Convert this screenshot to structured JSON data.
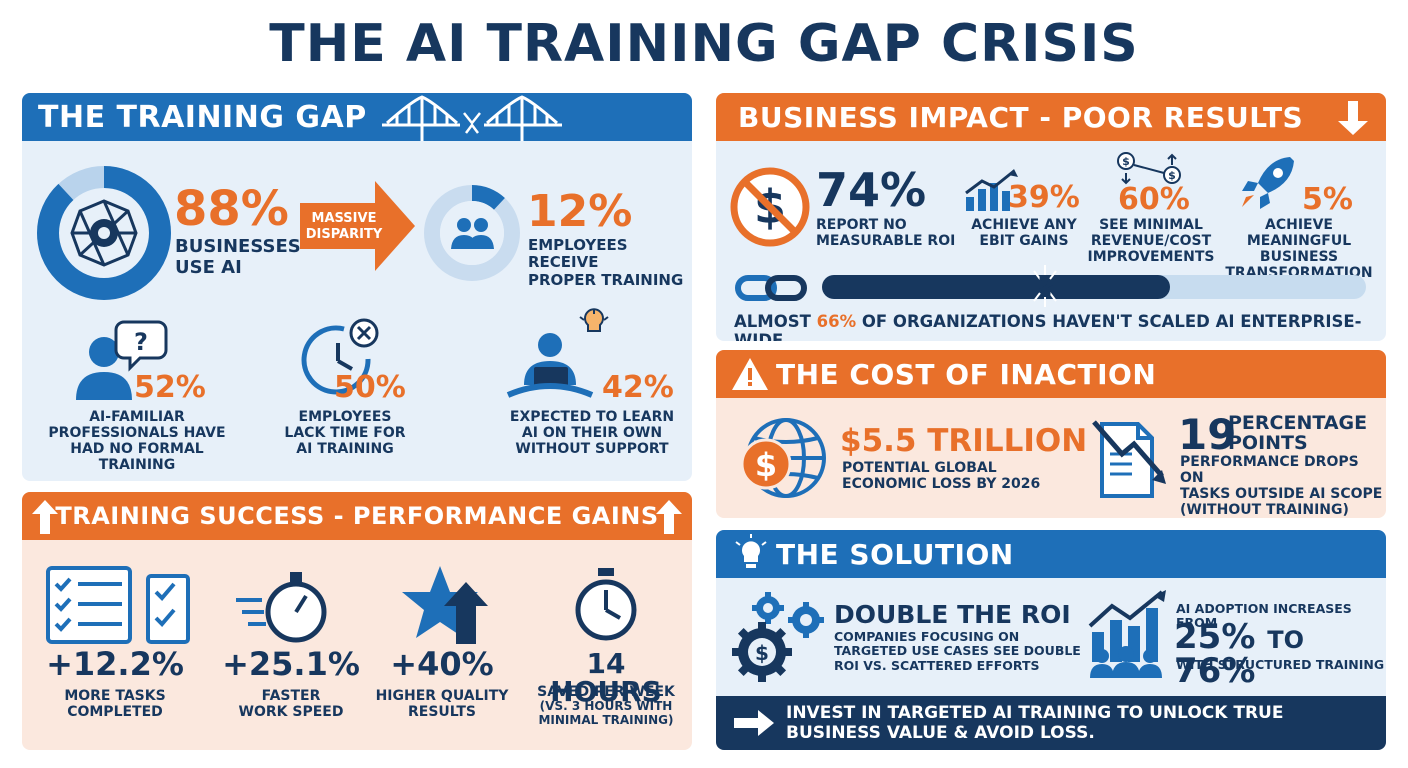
{
  "title": "THE AI TRAINING GAP CRISIS",
  "training_gap": {
    "header": "THE TRAINING GAP",
    "stat1": {
      "value": "88%",
      "label_line1": "BUSINESSES",
      "label_line2": "USE AI",
      "ring_level": 0.88
    },
    "arrow": {
      "line1": "MASSIVE",
      "line2": "DISPARITY"
    },
    "stat2": {
      "value": "12%",
      "label_line1": "EMPLOYEES RECEIVE",
      "label_line2": "PROPER TRAINING",
      "ring_level": 0.12
    },
    "stat3": {
      "value": "52%",
      "label_line1": "AI-FAMILIAR",
      "label_line2": "PROFESSIONALS HAVE",
      "label_line3": "HAD NO FORMAL TRAINING"
    },
    "stat4": {
      "value": "50%",
      "label_line1": "EMPLOYEES",
      "label_line2": "LACK TIME FOR",
      "label_line3": "AI TRAINING"
    },
    "stat5": {
      "value": "42%",
      "label_line1": "EXPECTED TO LEARN",
      "label_line2": "AI ON THEIR OWN",
      "label_line3": "WITHOUT SUPPORT"
    }
  },
  "training_success": {
    "header": "TRAINING SUCCESS - PERFORMANCE GAINS",
    "stat1": {
      "value": "+12.2%",
      "label_line1": "MORE TASKS",
      "label_line2": "COMPLETED"
    },
    "stat2": {
      "value": "+25.1%",
      "label_line1": "FASTER",
      "label_line2": "WORK SPEED"
    },
    "stat3": {
      "value": "+40%",
      "label_line1": "HIGHER QUALITY",
      "label_line2": "RESULTS"
    },
    "stat4": {
      "value": "14 HOURS",
      "label_line1": "SAVED PER WEEK",
      "label_line2": "(VS. 3 HOURS WITH",
      "label_line3": "MINIMAL TRAINING)"
    }
  },
  "business_impact": {
    "header": "BUSINESS IMPACT - POOR RESULTS",
    "stat1": {
      "value": "74%",
      "label_line1": "REPORT NO",
      "label_line2": "MEASURABLE ROI"
    },
    "stat2": {
      "value": "39%",
      "label_line1": "ACHIEVE ANY",
      "label_line2": "EBIT GAINS"
    },
    "stat3": {
      "value": "60%",
      "label_line1": "SEE MINIMAL",
      "label_line2": "REVENUE/COST",
      "label_line3": "IMPROVEMENTS"
    },
    "stat4": {
      "value": "5%",
      "label_line1": "ACHIEVE MEANINGFUL",
      "label_line2": "BUSINESS",
      "label_line3": "TRANSFORMATION"
    },
    "bar": {
      "prefix": "ALMOST ",
      "highlight": "66%",
      "suffix": " OF ORGANIZATIONS HAVEN'T SCALED AI ENTERPRISE-WIDE",
      "level": 0.64
    }
  },
  "cost_of_inaction": {
    "header": "THE COST OF INACTION",
    "stat1": {
      "value": "$5.5 TRILLION",
      "label_line1": "POTENTIAL GLOBAL",
      "label_line2": "ECONOMIC LOSS BY 2026"
    },
    "stat2": {
      "value": "19",
      "unit_line1": "PERCENTAGE",
      "unit_line2": "POINTS",
      "label_line1": "PERFORMANCE DROPS ON",
      "label_line2": "TASKS OUTSIDE AI SCOPE",
      "label_line3": "(WITHOUT TRAINING)"
    }
  },
  "solution": {
    "header": "THE SOLUTION",
    "stat1": {
      "title": "DOUBLE THE ROI",
      "label_line1": "COMPANIES FOCUSING ON",
      "label_line2": "TARGETED USE CASES SEE DOUBLE",
      "label_line3": "ROI VS. SCATTERED EFFORTS"
    },
    "stat2": {
      "label_top": "AI ADOPTION INCREASES FROM",
      "value_from": "25%",
      "value_to_word": "TO",
      "value_to": "76%",
      "label_bottom": "WITH STRUCTURED TRAINING"
    },
    "cta_line1": "INVEST IN TARGETED AI TRAINING TO UNLOCK TRUE",
    "cta_line2": "BUSINESS VALUE & AVOID LOSS."
  },
  "colors": {
    "navy": "#17375e",
    "blue": "#1e6fb8",
    "orange": "#e8702a",
    "light_blue": "#e7f0f9",
    "peach": "#fbe8de"
  },
  "icons": [
    "network-ring-icon",
    "people-ring-icon",
    "person-question-icon",
    "clock-x-icon",
    "person-laptop-icon",
    "checklist-icon",
    "stopwatch-icon",
    "star-arrow-icon",
    "clock-icon",
    "no-dollar-icon",
    "chart-up-icon",
    "dollar-exchange-icon",
    "rocket-icon",
    "chain-icon",
    "globe-dollar-icon",
    "document-chart-down-icon",
    "gears-dollar-icon",
    "people-chart-icon",
    "bridge-icon",
    "warning-icon",
    "lightbulb-icon",
    "arrow-right-icon"
  ]
}
